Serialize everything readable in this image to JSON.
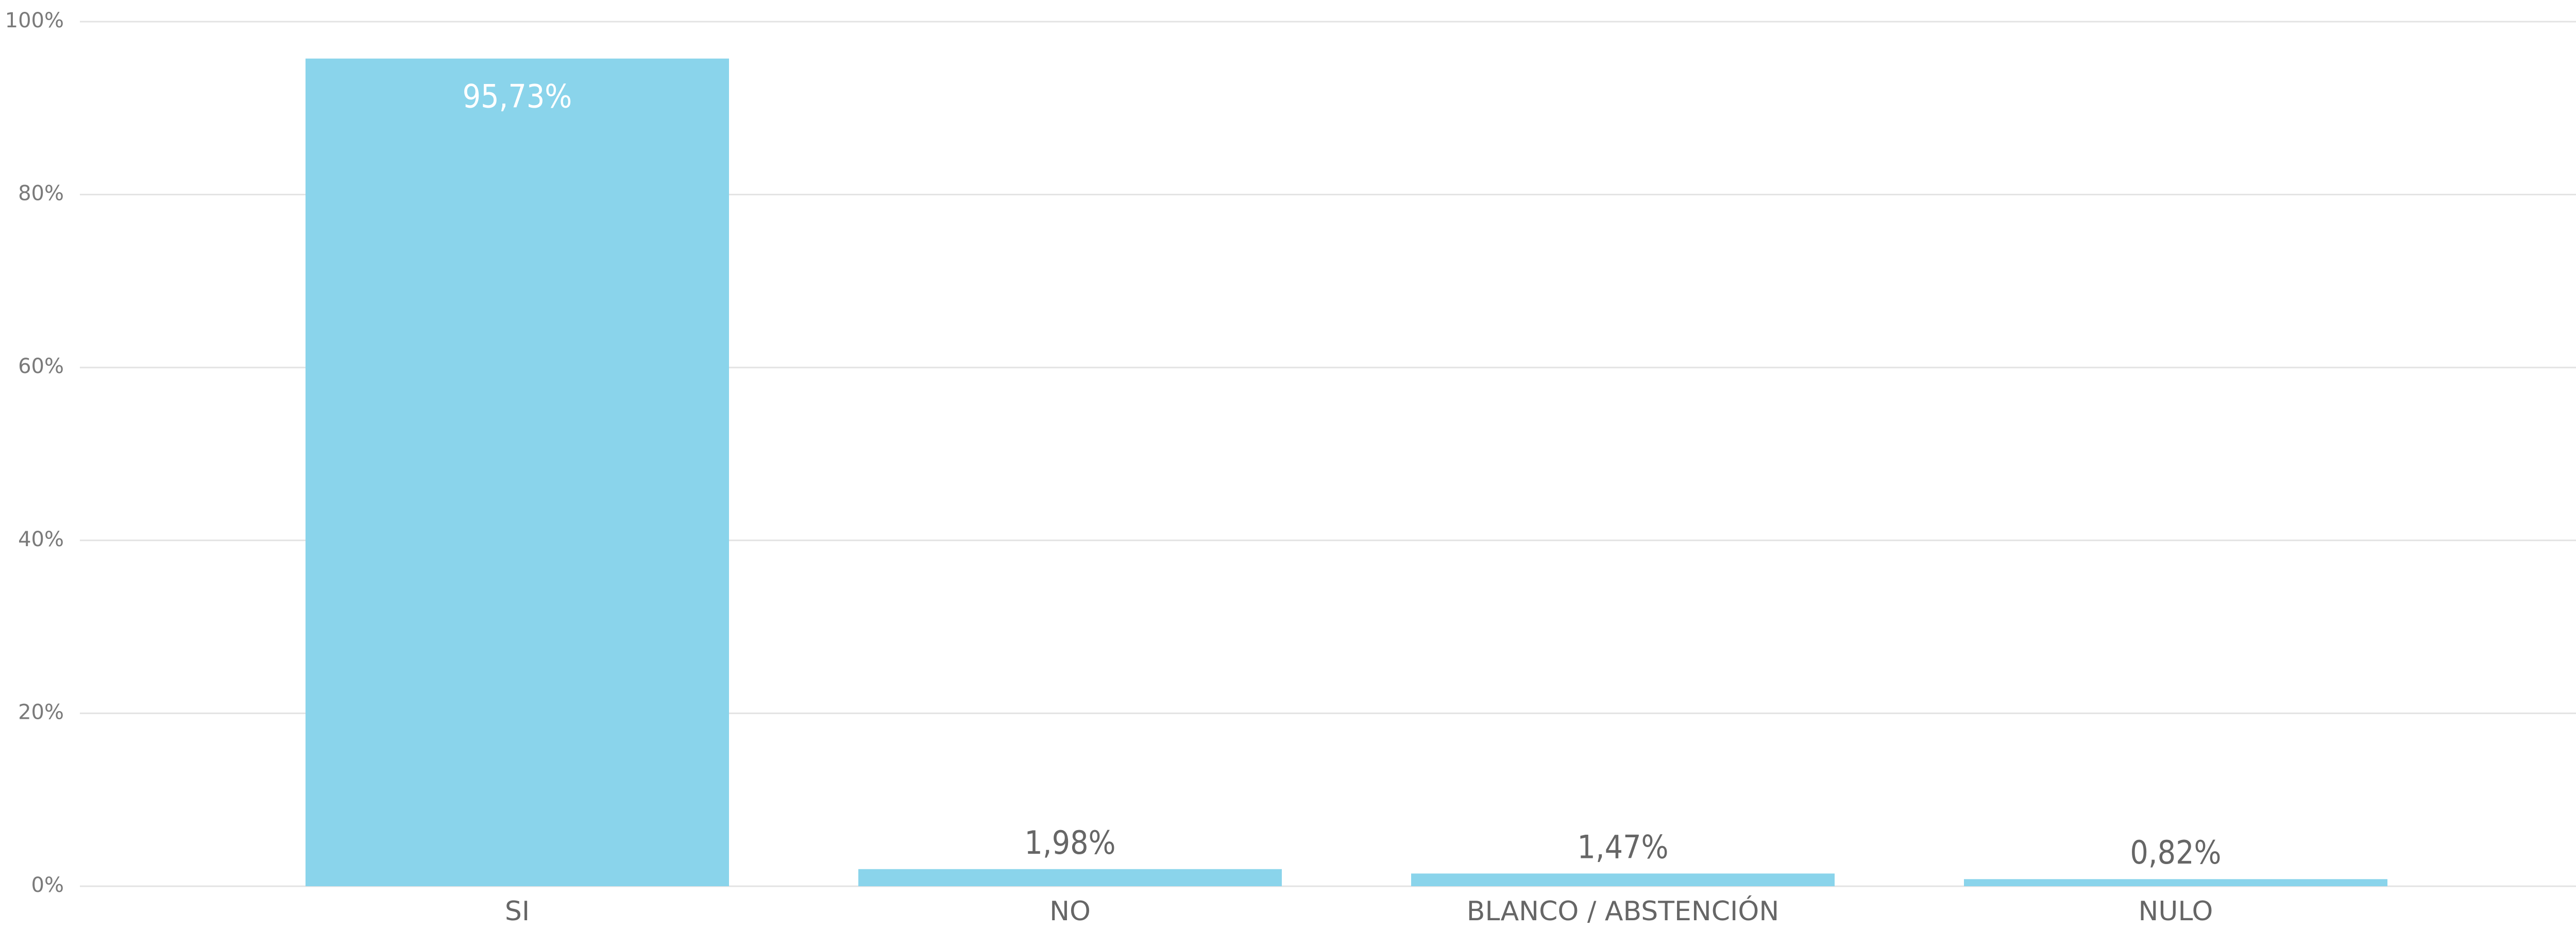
{
  "chart_data": {
    "type": "bar",
    "categories": [
      "SI",
      "NO",
      "BLANCO / ABSTENCIÓN",
      "NULO"
    ],
    "values": [
      95.73,
      1.98,
      1.47,
      0.82
    ],
    "data_labels": [
      "95,73%",
      "1,98%",
      "1,47%",
      "0,82%"
    ],
    "ylim": [
      0,
      100
    ],
    "yticks": [
      0,
      20,
      40,
      60,
      80,
      100
    ],
    "ytick_labels": [
      "0%",
      "20%",
      "40%",
      "60%",
      "80%",
      "100%"
    ],
    "grid": true,
    "colors": {
      "bar": "#8AD4EB",
      "inside_label": "#ffffff",
      "outside_label": "#666666"
    }
  }
}
